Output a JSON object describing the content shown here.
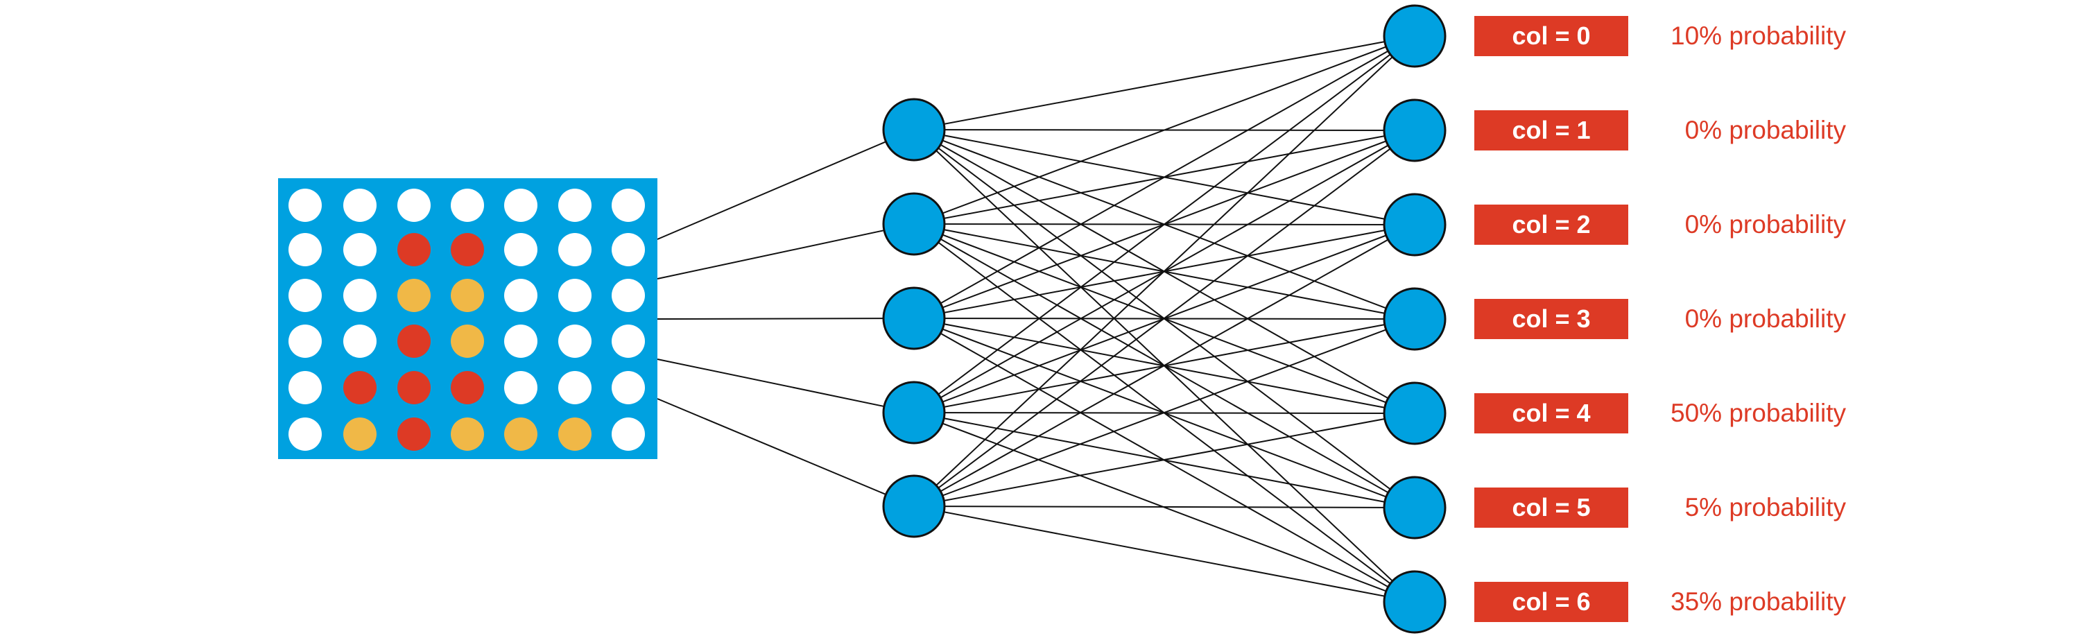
{
  "colors": {
    "board": "#00a1e0",
    "empty": "#ffffff",
    "red": "#dd3a25",
    "yellow": "#f0b847",
    "node_fill": "#00a1e0",
    "node_stroke": "#111111",
    "edge": "#111111",
    "label_bg": "#dd3a25",
    "label_text": "#ffffff",
    "prob_text": "#dd3a25"
  },
  "board": {
    "rows": 6,
    "cols": 7,
    "cells": [
      [
        "empty",
        "empty",
        "empty",
        "empty",
        "empty",
        "empty",
        "empty"
      ],
      [
        "empty",
        "empty",
        "red",
        "red",
        "empty",
        "empty",
        "empty"
      ],
      [
        "empty",
        "empty",
        "yellow",
        "yellow",
        "empty",
        "empty",
        "empty"
      ],
      [
        "empty",
        "empty",
        "red",
        "yellow",
        "empty",
        "empty",
        "empty"
      ],
      [
        "empty",
        "red",
        "red",
        "red",
        "empty",
        "empty",
        "empty"
      ],
      [
        "empty",
        "yellow",
        "red",
        "yellow",
        "yellow",
        "yellow",
        "empty"
      ]
    ]
  },
  "network": {
    "hidden_nodes": 5,
    "output_nodes": 7
  },
  "outputs": [
    {
      "label": "col = 0",
      "probability": "10% probability"
    },
    {
      "label": "col = 1",
      "probability": "0% probability"
    },
    {
      "label": "col = 2",
      "probability": "0% probability"
    },
    {
      "label": "col = 3",
      "probability": "0% probability"
    },
    {
      "label": "col = 4",
      "probability": "50% probability"
    },
    {
      "label": "col = 5",
      "probability": "5% probability"
    },
    {
      "label": "col = 6",
      "probability": "35% probability"
    }
  ]
}
